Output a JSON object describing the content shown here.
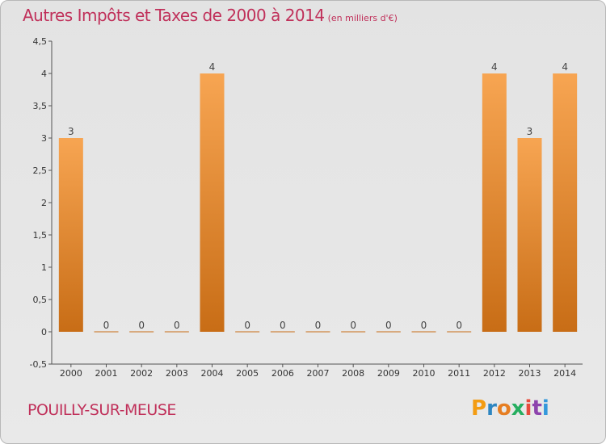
{
  "header": {
    "title": "Autres Impôts et Taxes de 2000 à 2014",
    "subtitle": "(en milliers d'€)"
  },
  "footer": {
    "commune": "POUILLY-SUR-MEUSE",
    "brand": "Proxiti"
  },
  "colors": {
    "title": "#c0305a",
    "bar_light": "#f7a552",
    "bar_dark": "#c86d16",
    "background": "#e6e6e6",
    "brand_letters": [
      "#f39c12",
      "#2e86c1",
      "#e67e22",
      "#27ae60",
      "#e74c3c",
      "#8e44ad",
      "#3498db"
    ]
  },
  "chart_data": {
    "type": "bar",
    "title": "Autres Impôts et Taxes de 2000 à 2014",
    "subtitle": "(en milliers d'€)",
    "categories": [
      "2000",
      "2001",
      "2002",
      "2003",
      "2004",
      "2005",
      "2006",
      "2007",
      "2008",
      "2009",
      "2010",
      "2011",
      "2012",
      "2013",
      "2014"
    ],
    "values": [
      3,
      0,
      0,
      0,
      4,
      0,
      0,
      0,
      0,
      0,
      0,
      0,
      4,
      3,
      4
    ],
    "data_labels": [
      "3",
      "0",
      "0",
      "0",
      "4",
      "0",
      "0",
      "0",
      "0",
      "0",
      "0",
      "0",
      "4",
      "3",
      "4"
    ],
    "ylim": [
      -0.5,
      4.5
    ],
    "yticks": [
      -0.5,
      0,
      0.5,
      1,
      1.5,
      2,
      2.5,
      3,
      3.5,
      4,
      4.5
    ],
    "ytick_labels": [
      "-0,5",
      "0",
      "0,5",
      "1",
      "1,5",
      "2",
      "2,5",
      "3",
      "3,5",
      "4",
      "4,5"
    ],
    "grid": false,
    "legend": "none"
  }
}
